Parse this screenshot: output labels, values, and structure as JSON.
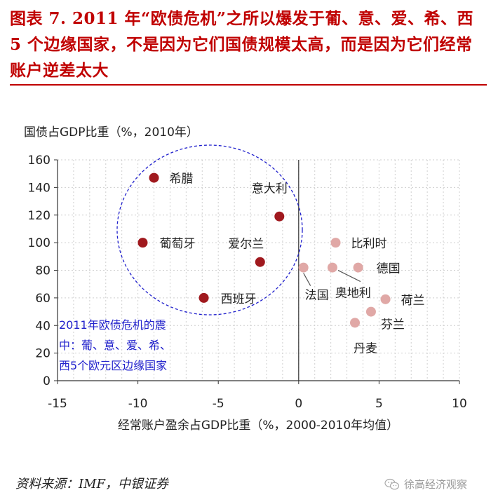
{
  "title": "图表 7. 2011 年“欧债危机”之所以爆发于葡、意、爱、希、西 5 个边缘国家，不是因为它们国债规模太高，而是因为它们经常账户逆差太大",
  "source": "资料来源：IMF，中银证券",
  "watermark": "徐高经济观察",
  "annotation_lines": [
    "2011年欧债危机的震",
    "中：葡、意、爱、希、",
    "西5个欧元区边缘国家"
  ],
  "colors": {
    "title": "#c00000",
    "core": "#a0191e",
    "periphery": "#e0a8a6",
    "circle": "#1f1fcc",
    "annotation": "#2222cc"
  },
  "icons": {
    "watermark": "wechat-icon"
  },
  "chart_data": {
    "type": "scatter",
    "xlabel": "经常账户盈余占GDP比重（%，2000-2010年均值）",
    "ylabel": "国债占GDP比重（%，2010年）",
    "xlim": [
      -15,
      10
    ],
    "ylim": [
      0,
      160
    ],
    "xticks": [
      -15,
      -10,
      -5,
      0,
      5,
      10
    ],
    "yticks": [
      0,
      20,
      40,
      60,
      80,
      100,
      120,
      140,
      160
    ],
    "grid": "dashed",
    "points": [
      {
        "label": "希腊",
        "x": -9.0,
        "y": 147,
        "group": "core"
      },
      {
        "label": "意大利",
        "x": -1.2,
        "y": 119,
        "group": "core"
      },
      {
        "label": "葡萄牙",
        "x": -9.7,
        "y": 100,
        "group": "core"
      },
      {
        "label": "爱尔兰",
        "x": -2.4,
        "y": 86,
        "group": "core"
      },
      {
        "label": "西班牙",
        "x": -5.9,
        "y": 60,
        "group": "core"
      },
      {
        "label": "比利时",
        "x": 2.3,
        "y": 100,
        "group": "periphery"
      },
      {
        "label": "德国",
        "x": 3.7,
        "y": 82,
        "group": "periphery"
      },
      {
        "label": "法国",
        "x": 0.3,
        "y": 82,
        "group": "periphery"
      },
      {
        "label": "奥地利",
        "x": 2.1,
        "y": 82,
        "group": "periphery"
      },
      {
        "label": "荷兰",
        "x": 5.4,
        "y": 59,
        "group": "periphery"
      },
      {
        "label": "芬兰",
        "x": 4.5,
        "y": 50,
        "group": "periphery"
      },
      {
        "label": "丹麦",
        "x": 3.5,
        "y": 42,
        "group": "periphery"
      }
    ]
  }
}
